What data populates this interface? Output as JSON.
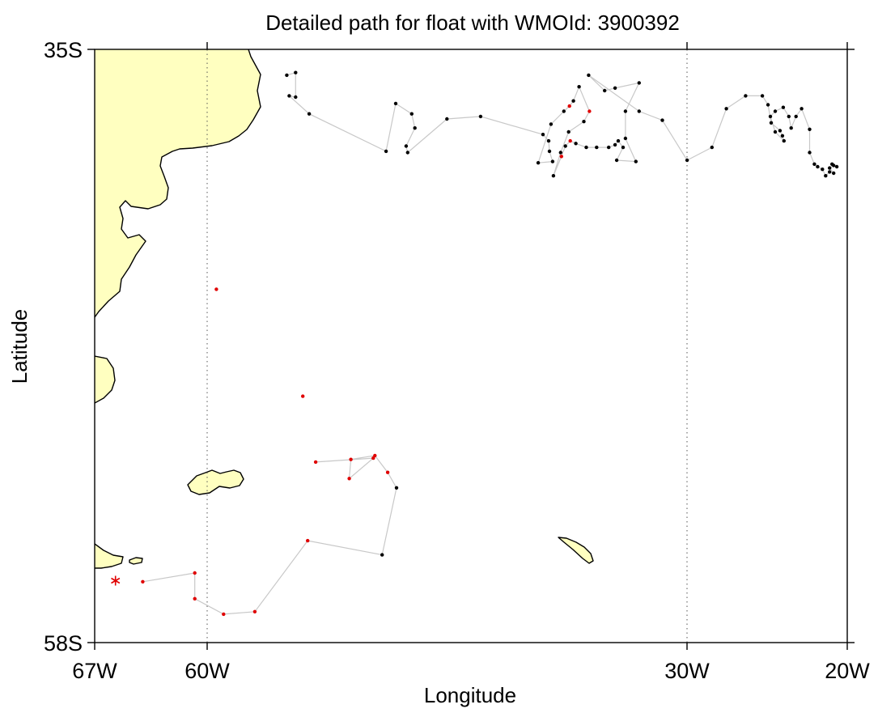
{
  "title": "Detailed path for float with WMOId: 3900392",
  "axes": {
    "xlabel": "Longitude",
    "ylabel": "Latitude",
    "xlim": [
      -67,
      -20
    ],
    "ylim": [
      -58,
      -35
    ],
    "x_tick_values": [
      -67,
      -60,
      -30,
      -20
    ],
    "x_tick_labels": [
      "67W",
      "60W",
      "30W",
      "20W"
    ],
    "y_tick_values": [
      -35,
      -58
    ],
    "y_tick_labels": [
      "35S",
      "58S"
    ],
    "meridian_gridlines": [
      -60,
      -30
    ]
  },
  "colors": {
    "land": "#ffffc0",
    "track_line": "#c8c8c8",
    "valid_position": "#000000",
    "interpolated_position": "#e00000",
    "deployment_marker": "#e00000"
  },
  "chart_data": {
    "type": "scatter",
    "title": "Detailed path for float with WMOId: 3900392",
    "xlabel": "Longitude",
    "ylabel": "Latitude",
    "xlim": [
      -67,
      -20
    ],
    "ylim": [
      -58,
      -35
    ],
    "grid": "dotted meridians at 60W and 30W",
    "deployment": {
      "lon": -65.7,
      "lat": -55.6,
      "marker": "asterisk",
      "color": "#e00000"
    },
    "segments": [
      [
        [
          -64.0,
          -55.64,
          "r"
        ],
        [
          -60.75,
          -55.3,
          "r"
        ],
        [
          -60.75,
          -56.3,
          "r"
        ],
        [
          -58.95,
          -56.9,
          "r"
        ],
        [
          -57.0,
          -56.8,
          "r"
        ],
        [
          -53.7,
          -54.05,
          "r"
        ],
        [
          -49.05,
          -54.6,
          "k"
        ],
        [
          -48.15,
          -52.0,
          "k"
        ],
        [
          -48.7,
          -51.4,
          "r"
        ],
        [
          -49.5,
          -50.75,
          "r"
        ],
        [
          -51.0,
          -50.9,
          "r"
        ],
        [
          -51.1,
          -51.64,
          "r"
        ],
        [
          -49.6,
          -50.85,
          "r"
        ],
        [
          -53.2,
          -51.0,
          "r"
        ]
      ],
      [
        [
          -54.0,
          -48.45,
          "r"
        ]
      ],
      [
        [
          -59.4,
          -44.3,
          "r"
        ]
      ],
      [
        [
          -55.0,
          -36.0,
          "k"
        ],
        [
          -54.45,
          -35.9,
          "k"
        ],
        [
          -54.45,
          -36.85,
          "k"
        ],
        [
          -54.85,
          -36.8,
          "k"
        ],
        [
          -53.6,
          -37.5,
          "k"
        ],
        [
          -48.8,
          -38.95,
          "k"
        ],
        [
          -48.2,
          -37.1,
          "k"
        ],
        [
          -47.2,
          -37.5,
          "k"
        ],
        [
          -47.0,
          -38.05,
          "k"
        ],
        [
          -47.55,
          -38.75,
          "k"
        ],
        [
          -47.45,
          -39.0,
          "k"
        ],
        [
          -45.0,
          -37.7,
          "k"
        ],
        [
          -42.9,
          -37.6,
          "k"
        ],
        [
          -39.0,
          -38.3,
          "k"
        ],
        [
          -38.65,
          -38.55,
          "k"
        ],
        [
          -38.6,
          -38.95,
          "k"
        ],
        [
          -38.4,
          -39.35,
          "k"
        ],
        [
          -39.3,
          -39.4,
          "k"
        ],
        [
          -38.5,
          -37.9,
          "k"
        ],
        [
          -37.7,
          -37.4,
          "k"
        ],
        [
          -37.35,
          -37.2,
          "r"
        ],
        [
          -37.1,
          -37.0,
          "k"
        ],
        [
          -36.75,
          -36.45,
          "k"
        ],
        [
          -36.1,
          -37.4,
          "r"
        ],
        [
          -36.45,
          -37.8,
          "k"
        ],
        [
          -37.4,
          -38.2,
          "k"
        ],
        [
          -37.9,
          -39.0,
          "k"
        ],
        [
          -38.35,
          -39.9,
          "k"
        ],
        [
          -37.85,
          -39.15,
          "r"
        ],
        [
          -37.6,
          -38.75,
          "k"
        ],
        [
          -37.3,
          -38.55,
          "r"
        ],
        [
          -36.95,
          -38.65,
          "k"
        ],
        [
          -36.3,
          -38.8,
          "k"
        ],
        [
          -35.65,
          -38.8,
          "k"
        ],
        [
          -34.9,
          -38.8,
          "k"
        ],
        [
          -34.5,
          -38.7,
          "k"
        ],
        [
          -34.3,
          -38.55,
          "k"
        ],
        [
          -34.0,
          -38.8,
          "k"
        ],
        [
          -34.4,
          -39.3,
          "k"
        ],
        [
          -33.2,
          -39.35,
          "k"
        ],
        [
          -33.85,
          -38.45,
          "k"
        ],
        [
          -33.85,
          -37.4,
          "k"
        ],
        [
          -33.0,
          -36.3,
          "k"
        ],
        [
          -34.5,
          -36.5,
          "k"
        ],
        [
          -35.15,
          -36.6,
          "k"
        ],
        [
          -36.15,
          -36.0,
          "k"
        ],
        [
          -33.0,
          -37.4,
          "k"
        ],
        [
          -31.55,
          -37.75,
          "k"
        ],
        [
          -30.0,
          -39.3,
          "k"
        ],
        [
          -28.45,
          -38.8,
          "k"
        ],
        [
          -27.55,
          -37.3,
          "k"
        ],
        [
          -26.35,
          -36.8,
          "k"
        ],
        [
          -25.3,
          -36.8,
          "k"
        ],
        [
          -24.95,
          -37.15,
          "k"
        ],
        [
          -24.75,
          -37.85,
          "k"
        ],
        [
          -24.2,
          -38.15,
          "k"
        ],
        [
          -24.05,
          -38.35,
          "k"
        ],
        [
          -23.95,
          -38.55,
          "k"
        ],
        [
          -24.5,
          -38.2,
          "k"
        ],
        [
          -24.8,
          -37.6,
          "k"
        ],
        [
          -24.5,
          -37.4,
          "k"
        ],
        [
          -24.0,
          -37.25,
          "k"
        ],
        [
          -23.65,
          -37.6,
          "k"
        ],
        [
          -23.5,
          -38.05,
          "k"
        ],
        [
          -23.2,
          -37.6,
          "k"
        ],
        [
          -22.85,
          -37.3,
          "k"
        ],
        [
          -22.35,
          -38.1,
          "k"
        ],
        [
          -22.35,
          -39.0,
          "k"
        ],
        [
          -22.05,
          -39.45,
          "k"
        ],
        [
          -21.85,
          -39.55,
          "k"
        ],
        [
          -21.55,
          -39.65,
          "k"
        ],
        [
          -21.35,
          -39.9,
          "k"
        ],
        [
          -21.1,
          -39.75,
          "k"
        ],
        [
          -20.85,
          -39.8,
          "k"
        ],
        [
          -21.1,
          -39.6,
          "k"
        ],
        [
          -20.85,
          -39.5,
          "k"
        ],
        [
          -20.65,
          -39.55,
          "k"
        ],
        [
          -20.95,
          -39.45,
          "k"
        ]
      ]
    ],
    "series": [
      {
        "name": "",
        "color": "#000000"
      },
      {
        "name": "",
        "color": "#e00000"
      }
    ]
  }
}
